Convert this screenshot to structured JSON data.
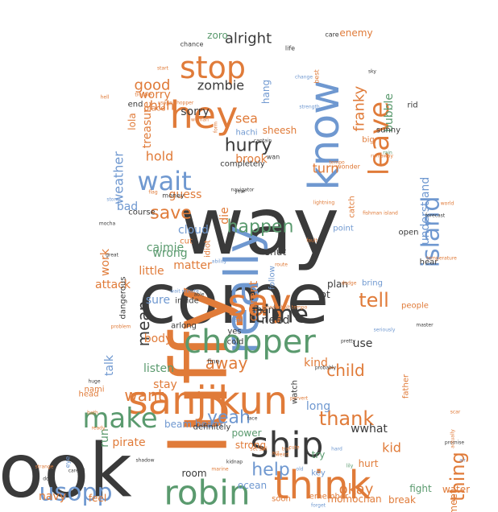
{
  "wordcloud": {
    "palette": {
      "dark": "#3a3a3a",
      "orange": "#e07b39",
      "blue": "#6f98d0",
      "green": "#5a9a6e"
    },
    "words": [
      {
        "text": "way",
        "color": "dark"
      },
      {
        "text": "come",
        "color": "dark"
      },
      {
        "text": "look",
        "color": "dark"
      },
      {
        "text": "luffy",
        "color": "orange"
      },
      {
        "text": "really",
        "color": "blue"
      },
      {
        "text": "sanjikun",
        "color": "orange"
      },
      {
        "text": "know",
        "color": "blue"
      },
      {
        "text": "say",
        "color": "orange"
      },
      {
        "text": "think",
        "color": "orange"
      },
      {
        "text": "chopper",
        "color": "green"
      },
      {
        "text": "ship",
        "color": "dark"
      },
      {
        "text": "robin",
        "color": "green"
      },
      {
        "text": "hey",
        "color": "orange"
      },
      {
        "text": "stop",
        "color": "orange"
      },
      {
        "text": "make",
        "color": "green"
      },
      {
        "text": "usopp",
        "color": "blue"
      },
      {
        "text": "wait",
        "color": "blue"
      },
      {
        "text": "time",
        "color": "dark"
      },
      {
        "text": "leave",
        "color": "orange"
      },
      {
        "text": "island",
        "color": "blue"
      },
      {
        "text": "happen",
        "color": "green"
      },
      {
        "text": "hurry",
        "color": "dark"
      },
      {
        "text": "tell",
        "color": "orange"
      },
      {
        "text": "save",
        "color": "orange"
      },
      {
        "text": "help",
        "color": "blue"
      },
      {
        "text": "thank",
        "color": "orange"
      },
      {
        "text": "yeah",
        "color": "blue"
      },
      {
        "text": "away",
        "color": "orange"
      },
      {
        "text": "thing",
        "color": "orange"
      },
      {
        "text": "child",
        "color": "orange"
      },
      {
        "text": "kid",
        "color": "orange"
      },
      {
        "text": "okay",
        "color": "orange"
      },
      {
        "text": "want",
        "color": "orange"
      },
      {
        "text": "mean",
        "color": "dark"
      },
      {
        "text": "alright",
        "color": "dark"
      },
      {
        "text": "good",
        "color": "orange"
      },
      {
        "text": "zombie",
        "color": "dark"
      },
      {
        "text": "huh",
        "color": "orange"
      },
      {
        "text": "worry",
        "color": "orange"
      },
      {
        "text": "sorry",
        "color": "dark"
      },
      {
        "text": "treasure",
        "color": "orange"
      },
      {
        "text": "franky",
        "color": "orange"
      },
      {
        "text": "sea",
        "color": "orange"
      },
      {
        "text": "hold",
        "color": "orange"
      },
      {
        "text": "brook",
        "color": "orange"
      },
      {
        "text": "turn",
        "color": "orange"
      },
      {
        "text": "bubble",
        "color": "green"
      },
      {
        "text": "underst and",
        "color": "blue"
      },
      {
        "text": "weather",
        "color": "blue"
      },
      {
        "text": "lola",
        "color": "orange"
      },
      {
        "text": "sheesh",
        "color": "orange"
      },
      {
        "text": "bad",
        "color": "blue"
      },
      {
        "text": "guess",
        "color": "orange"
      },
      {
        "text": "cloud",
        "color": "blue"
      },
      {
        "text": "die",
        "color": "orange"
      },
      {
        "text": "caimie",
        "color": "green"
      },
      {
        "text": "wrong",
        "color": "green"
      },
      {
        "text": "work",
        "color": "orange"
      },
      {
        "text": "little",
        "color": "orange"
      },
      {
        "text": "matter",
        "color": "orange"
      },
      {
        "text": "attack",
        "color": "orange"
      },
      {
        "text": "sure",
        "color": "blue"
      },
      {
        "text": "current",
        "color": "orange"
      },
      {
        "text": "need",
        "color": "dark"
      },
      {
        "text": "use",
        "color": "dark"
      },
      {
        "text": "body",
        "color": "orange"
      },
      {
        "text": "talk",
        "color": "blue"
      },
      {
        "text": "listen",
        "color": "green"
      },
      {
        "text": "stay",
        "color": "orange"
      },
      {
        "text": "kind",
        "color": "orange"
      },
      {
        "text": "long",
        "color": "blue"
      },
      {
        "text": "run",
        "color": "green"
      },
      {
        "text": "pirate",
        "color": "orange"
      },
      {
        "text": "beam beam",
        "color": "blue"
      },
      {
        "text": "strong",
        "color": "orange"
      },
      {
        "text": "power",
        "color": "green"
      },
      {
        "text": "try",
        "color": "green"
      },
      {
        "text": "hurt",
        "color": "orange"
      },
      {
        "text": "room",
        "color": "dark"
      },
      {
        "text": "ocean",
        "color": "blue"
      },
      {
        "text": "momochan",
        "color": "orange"
      },
      {
        "text": "water",
        "color": "orange"
      },
      {
        "text": "navy",
        "color": "orange"
      },
      {
        "text": "feel",
        "color": "orange"
      },
      {
        "text": "wwhat",
        "color": "dark"
      },
      {
        "text": "fight",
        "color": "green"
      },
      {
        "text": "break",
        "color": "orange"
      },
      {
        "text": "meet",
        "color": "orange"
      },
      {
        "text": "enemy",
        "color": "orange"
      },
      {
        "text": "zoro",
        "color": "green"
      },
      {
        "text": "bring",
        "color": "blue"
      },
      {
        "text": "plan",
        "color": "dark"
      },
      {
        "text": "shut",
        "color": "dark"
      },
      {
        "text": "yes",
        "color": "dark"
      },
      {
        "text": "cold",
        "color": "dark"
      },
      {
        "text": "man",
        "color": "dark"
      },
      {
        "text": "lot",
        "color": "dark"
      },
      {
        "text": "hear",
        "color": "dark"
      },
      {
        "text": "people",
        "color": "orange"
      },
      {
        "text": "catch",
        "color": "orange"
      },
      {
        "text": "point",
        "color": "blue"
      },
      {
        "text": "open",
        "color": "dark"
      },
      {
        "text": "hachi",
        "color": "blue"
      },
      {
        "text": "sunny",
        "color": "dark"
      },
      {
        "text": "big",
        "color": "orange"
      },
      {
        "text": "rid",
        "color": "dark"
      },
      {
        "text": "hang",
        "color": "blue"
      },
      {
        "text": "place",
        "color": "orange"
      },
      {
        "text": "end",
        "color": "dark"
      },
      {
        "text": "cut",
        "color": "orange"
      },
      {
        "text": "idiot",
        "color": "orange"
      },
      {
        "text": "follow",
        "color": "blue"
      },
      {
        "text": "dangerous",
        "color": "dark"
      },
      {
        "text": "arlong",
        "color": "dark"
      },
      {
        "text": "inside",
        "color": "dark"
      },
      {
        "text": "nami",
        "color": "orange"
      },
      {
        "text": "head",
        "color": "orange"
      },
      {
        "text": "far",
        "color": "orange"
      },
      {
        "text": "father",
        "color": "orange"
      },
      {
        "text": "watch",
        "color": "dark"
      },
      {
        "text": "definitely",
        "color": "dark"
      },
      {
        "text": "soon",
        "color": "orange"
      },
      {
        "text": "fine",
        "color": "dark"
      },
      {
        "text": "key",
        "color": "blue"
      },
      {
        "text": "remember",
        "color": "orange"
      },
      {
        "text": "eye",
        "color": "blue"
      },
      {
        "text": "completely",
        "color": "dark"
      },
      {
        "text": "wan",
        "color": "dark"
      },
      {
        "text": "course",
        "color": "dark"
      },
      {
        "text": "chance",
        "color": "dark"
      },
      {
        "text": "care",
        "color": "dark"
      },
      {
        "text": "life",
        "color": "dark"
      },
      {
        "text": "best",
        "color": "orange"
      },
      {
        "text": "wonder",
        "color": "orange"
      },
      {
        "text": "tempo",
        "color": "orange"
      },
      {
        "text": "money",
        "color": "dark"
      },
      {
        "text": "flag",
        "color": "orange"
      },
      {
        "text": "storm",
        "color": "blue"
      },
      {
        "text": "mocha",
        "color": "dark"
      },
      {
        "text": "great",
        "color": "dark"
      },
      {
        "text": "ability",
        "color": "blue"
      },
      {
        "text": "captain",
        "color": "dark"
      },
      {
        "text": "navigator",
        "color": "dark"
      },
      {
        "text": "lightning",
        "color": "orange"
      },
      {
        "text": "fishman island",
        "color": "orange"
      },
      {
        "text": "forecast",
        "color": "dark"
      },
      {
        "text": "problem",
        "color": "orange"
      },
      {
        "text": "thunderbolt tempo",
        "color": "orange"
      },
      {
        "text": "wait minute",
        "color": "blue"
      },
      {
        "text": "pervert",
        "color": "orange"
      },
      {
        "text": "pretty",
        "color": "dark"
      },
      {
        "text": "dodge",
        "color": "orange"
      },
      {
        "text": "seriously",
        "color": "blue"
      },
      {
        "text": "master",
        "color": "dark"
      },
      {
        "text": "huge",
        "color": "dark"
      },
      {
        "text": "bath",
        "color": "orange"
      },
      {
        "text": "ready",
        "color": "orange"
      },
      {
        "text": "careful",
        "color": "dark"
      },
      {
        "text": "door",
        "color": "dark"
      },
      {
        "text": "strange",
        "color": "orange"
      },
      {
        "text": "forget",
        "color": "blue"
      },
      {
        "text": "lily",
        "color": "green"
      },
      {
        "text": "promise",
        "color": "dark"
      },
      {
        "text": "actually",
        "color": "orange"
      },
      {
        "text": "old",
        "color": "blue"
      },
      {
        "text": "hard",
        "color": "blue"
      },
      {
        "text": "set sail",
        "color": "orange"
      },
      {
        "text": "kidnap",
        "color": "dark"
      },
      {
        "text": "shadow",
        "color": "dark"
      },
      {
        "text": "marine",
        "color": "orange"
      },
      {
        "text": "face",
        "color": "dark"
      },
      {
        "text": "strength",
        "color": "blue"
      },
      {
        "text": "woman",
        "color": "orange"
      },
      {
        "text": "usopp chopper",
        "color": "orange"
      },
      {
        "text": "trouble",
        "color": "orange"
      },
      {
        "text": "hell",
        "color": "orange"
      },
      {
        "text": "start",
        "color": "orange"
      },
      {
        "text": "form",
        "color": "orange"
      },
      {
        "text": "world",
        "color": "orange"
      },
      {
        "text": "run away",
        "color": "orange"
      },
      {
        "text": "rain",
        "color": "green"
      },
      {
        "text": "sky",
        "color": "dark"
      },
      {
        "text": "fault",
        "color": "orange"
      },
      {
        "text": "route",
        "color": "orange"
      },
      {
        "text": "year",
        "color": "dark"
      },
      {
        "text": "temperature",
        "color": "orange"
      },
      {
        "text": "change",
        "color": "blue"
      },
      {
        "text": "ask",
        "color": "blue"
      },
      {
        "text": "able",
        "color": "dark"
      },
      {
        "text": "probably",
        "color": "dark"
      },
      {
        "text": "scar",
        "color": "orange"
      },
      {
        "text": "act",
        "color": "orange"
      },
      {
        "text": "cute",
        "color": "orange"
      },
      {
        "text": "traf",
        "color": "orange"
      },
      {
        "text": "air",
        "color": "blue"
      },
      {
        "text": "weird",
        "color": "orange"
      },
      {
        "text": "kill",
        "color": "blue"
      },
      {
        "text": "lose",
        "color": "blue"
      },
      {
        "text": "blue",
        "color": "blue"
      },
      {
        "text": "ill",
        "color": "dark"
      }
    ]
  }
}
